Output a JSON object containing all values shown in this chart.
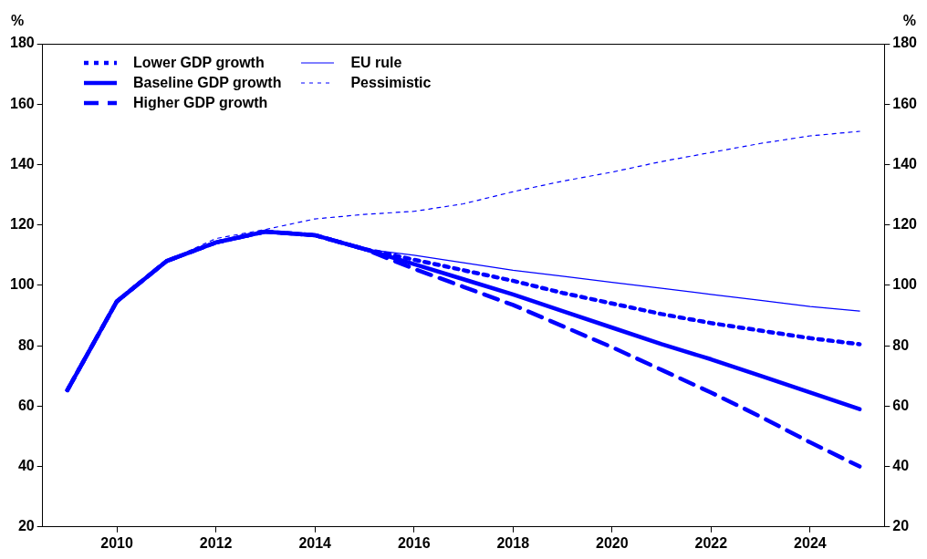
{
  "chart_data": {
    "type": "line",
    "x": [
      2009,
      2010,
      2011,
      2012,
      2013,
      2014,
      2015,
      2016,
      2017,
      2018,
      2019,
      2020,
      2021,
      2022,
      2023,
      2024,
      2025
    ],
    "series": [
      {
        "name": "Lower GDP growth",
        "color": "#0000ff",
        "line_style": "dotted",
        "values": [
          65.3,
          94.7,
          108,
          114.2,
          117.8,
          116.6,
          112,
          108.5,
          105,
          101.5,
          97.5,
          94,
          90.5,
          87.5,
          85,
          82.5,
          80.5
        ]
      },
      {
        "name": "Baseline GDP growth",
        "color": "#0000ff",
        "line_style": "solid",
        "values": [
          65.3,
          94.7,
          108,
          114.2,
          117.8,
          116.6,
          112,
          107,
          102,
          97,
          91.5,
          86,
          80.5,
          75.5,
          70,
          64.5,
          59
        ]
      },
      {
        "name": "Higher GDP growth",
        "color": "#0000ff",
        "line_style": "dashed",
        "values": [
          65.3,
          94.7,
          108,
          114.2,
          117.8,
          116.6,
          112,
          105.5,
          99.5,
          93.5,
          86.5,
          79.5,
          72,
          64.5,
          56.5,
          48,
          40
        ]
      },
      {
        "name": "EU rule",
        "color": "#0000ff",
        "line_style": "solid",
        "values": [
          65.3,
          94.7,
          108,
          114.5,
          117.8,
          116.6,
          112,
          110,
          107.5,
          105,
          103,
          101,
          99,
          97,
          95,
          93,
          91.5
        ]
      },
      {
        "name": "Pessimistic",
        "color": "#0000ff",
        "line_style": "dashed",
        "values": [
          65.3,
          94.7,
          108,
          115.5,
          118.5,
          122,
          123.5,
          124.5,
          127,
          131,
          134.5,
          137.5,
          141,
          144,
          147,
          149.5,
          151
        ]
      }
    ],
    "xlim": [
      2008.5,
      2025.5
    ],
    "xticks": [
      2010,
      2012,
      2014,
      2016,
      2018,
      2020,
      2022,
      2024
    ],
    "ylabel": "%",
    "y2label": "%",
    "ylim": [
      20,
      180
    ],
    "yticks": [
      20,
      40,
      60,
      80,
      100,
      120,
      140,
      160,
      180
    ],
    "y2lim": [
      20,
      180
    ],
    "y2ticks": [
      20,
      40,
      60,
      80,
      100,
      120,
      140,
      160,
      180
    ],
    "grid": false,
    "legend": "top left",
    "marker": "none"
  }
}
